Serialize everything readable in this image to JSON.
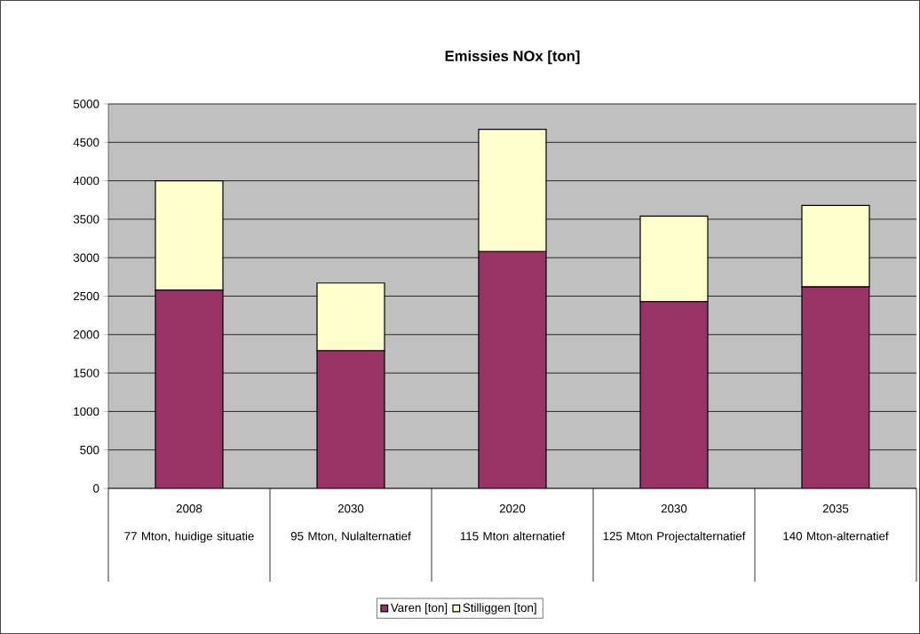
{
  "chart_data": {
    "type": "bar",
    "title": "Emissies NOx [ton]",
    "stacked": true,
    "categories": [
      "2008",
      "2030",
      "2020",
      "2030",
      "2035"
    ],
    "annotations": [
      "77 Mton, huidige situatie",
      "95 Mton, Nulalternatief",
      "115 Mton alternatief",
      "125 Mton Projectalternatief",
      "140 Mton-alternatief"
    ],
    "series": [
      {
        "name": "Varen [ton]",
        "color": "#993366",
        "values": [
          2580,
          1790,
          3080,
          2430,
          2620
        ]
      },
      {
        "name": "Stilliggen [ton]",
        "color": "#ffffcc",
        "values": [
          1420,
          880,
          1590,
          1110,
          1060
        ]
      }
    ],
    "ylim": [
      0,
      5000
    ],
    "yticks": [
      0,
      500,
      1000,
      1500,
      2000,
      2500,
      3000,
      3500,
      4000,
      4500,
      5000
    ],
    "grid": "y",
    "legend": "bottom"
  }
}
